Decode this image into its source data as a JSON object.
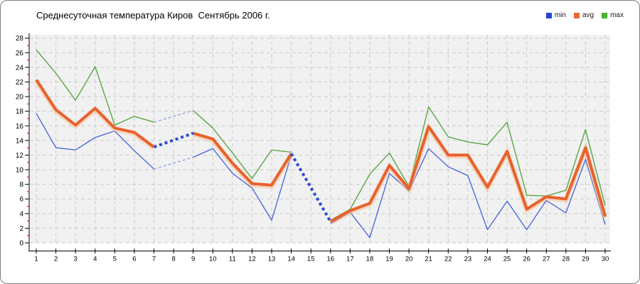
{
  "header": {
    "title": "Среднесуточная температура Киров  Сентябрь 2006 г."
  },
  "legend": {
    "items": [
      {
        "label": "min",
        "color": "#2543d8"
      },
      {
        "label": "avg",
        "color": "#e8692f"
      },
      {
        "label": "max",
        "color": "#47b42a"
      }
    ]
  },
  "chart_data": {
    "type": "line",
    "title": "Среднесуточная температура Киров  Сентябрь 2006 г.",
    "xlabel": "",
    "ylabel": "",
    "x": [
      1,
      2,
      3,
      4,
      5,
      6,
      7,
      8,
      9,
      10,
      11,
      12,
      13,
      14,
      15,
      16,
      17,
      18,
      19,
      20,
      21,
      22,
      23,
      24,
      25,
      26,
      27,
      28,
      29,
      30
    ],
    "ylim": [
      0,
      28
    ],
    "ytick_step": 2,
    "grid": "dashed",
    "plot_bg": "#f1f1f1",
    "grid_color": "#cbcbcb",
    "axis_color": "#000000",
    "minor_tick_color": "#d40000",
    "series": [
      {
        "name": "min",
        "color": "#4f6bd9",
        "width": 1.4,
        "values": [
          17.7,
          13.0,
          12.7,
          14.4,
          15.3,
          12.6,
          10.1,
          null,
          11.7,
          12.9,
          9.5,
          7.5,
          3.1,
          12.0,
          null,
          2.6,
          4.2,
          0.7,
          9.5,
          7.1,
          12.9,
          10.4,
          9.2,
          1.8,
          5.7,
          1.8,
          5.8,
          4.1,
          11.4,
          2.5
        ]
      },
      {
        "name": "avg",
        "color": "#e8612c",
        "width": 4,
        "halo": "#f6bf96",
        "values": [
          22.3,
          18.2,
          16.1,
          18.4,
          15.7,
          15.1,
          13.1,
          null,
          15.0,
          14.2,
          10.9,
          8.1,
          7.9,
          12.2,
          null,
          2.9,
          4.4,
          5.4,
          10.6,
          7.4,
          15.9,
          12.0,
          12.0,
          7.6,
          12.5,
          4.6,
          6.3,
          6.0,
          13.0,
          3.6
        ]
      },
      {
        "name": "max",
        "color": "#5ba544",
        "width": 1.4,
        "values": [
          26.4,
          23.2,
          19.5,
          24.1,
          16.1,
          17.3,
          16.5,
          null,
          18.1,
          15.7,
          12.3,
          8.8,
          12.7,
          12.4,
          null,
          3.1,
          4.6,
          9.4,
          12.3,
          7.7,
          18.6,
          14.5,
          13.8,
          13.4,
          16.5,
          6.5,
          6.4,
          7.2,
          15.5,
          5.1
        ]
      }
    ],
    "interpolated_segments": [
      {
        "series": "max",
        "from_day": 7,
        "to_day": 9,
        "style": "thin-dashed",
        "color": "#91a2ec",
        "width": 1.4
      },
      {
        "series": "min",
        "from_day": 7,
        "to_day": 9,
        "style": "thin-dashed",
        "color": "#91a2ec",
        "width": 1.4
      },
      {
        "series": "avg",
        "from_day": 7,
        "to_day": 9,
        "style": "thick-dashed",
        "color": "#2e4cd4",
        "width": 4
      },
      {
        "series": "avg",
        "from_day": 14,
        "to_day": 16,
        "style": "thick-dashed",
        "color": "#2e4cd4",
        "width": 4
      }
    ]
  }
}
